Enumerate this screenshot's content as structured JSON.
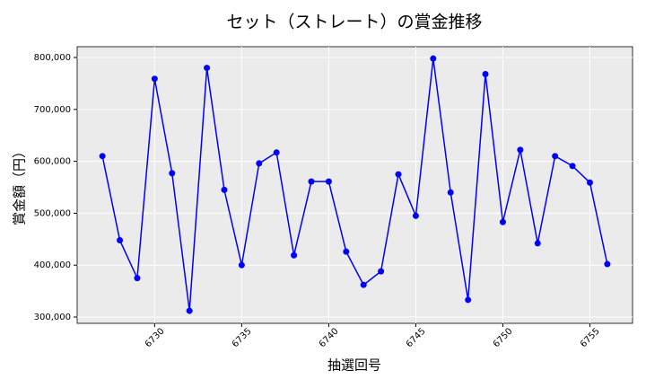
{
  "chart_data": {
    "type": "line",
    "title": "セット（ストレート）の賞金推移",
    "x_label": "抽選回号",
    "y_label": "賞金額（円）",
    "x": [
      6727,
      6728,
      6729,
      6730,
      6731,
      6732,
      6733,
      6734,
      6735,
      6736,
      6737,
      6738,
      6739,
      6740,
      6741,
      6742,
      6743,
      6744,
      6745,
      6746,
      6747,
      6748,
      6749,
      6750,
      6751,
      6752,
      6753,
      6754,
      6755,
      6756
    ],
    "series": [
      {
        "name": "賞金額",
        "color": "#0000ff",
        "values": [
          610000,
          448000,
          375000,
          759000,
          577000,
          312000,
          780000,
          545000,
          400000,
          596000,
          617000,
          419000,
          561000,
          561000,
          426000,
          362000,
          388000,
          575000,
          495000,
          798000,
          540000,
          333000,
          768000,
          483000,
          622000,
          442000,
          610000,
          591000,
          559000,
          402000
        ]
      }
    ],
    "xlim": [
      6725.55,
      6757.45
    ],
    "xticks": [
      6730,
      6735,
      6740,
      6745,
      6750,
      6755
    ],
    "ylim": [
      287900,
      820800
    ],
    "yticks": [
      {
        "value": 300000,
        "label": "300,000"
      },
      {
        "value": 400000,
        "label": "400,000"
      },
      {
        "value": 500000,
        "label": "500,000"
      },
      {
        "value": 600000,
        "label": "600,000"
      },
      {
        "value": 700000,
        "label": "700,000"
      },
      {
        "value": 800000,
        "label": "800,000"
      }
    ],
    "grid": true
  }
}
